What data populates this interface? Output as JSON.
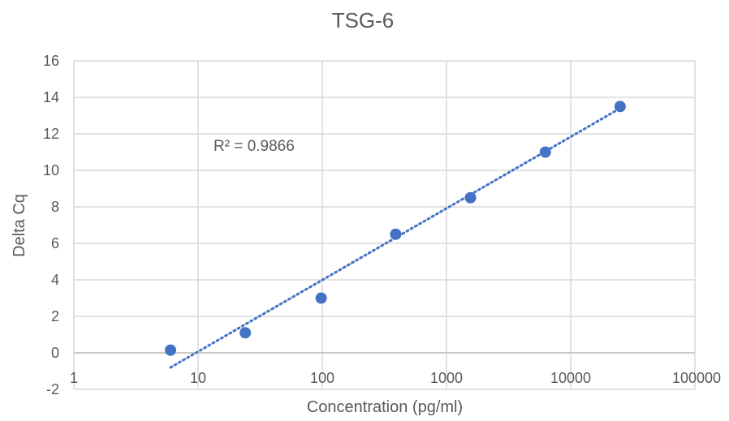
{
  "chart_data": {
    "type": "scatter",
    "title": "TSG-6",
    "xlabel": "Concentration (pg/ml)",
    "ylabel": "Delta Cq",
    "x_scale": "log",
    "xlim": [
      1,
      100000
    ],
    "ylim": [
      -2,
      16
    ],
    "x_ticks": [
      1,
      10,
      100,
      1000,
      10000,
      100000
    ],
    "x_tick_labels": [
      "1",
      "10",
      "100",
      "1000",
      "10000",
      "100000"
    ],
    "y_ticks": [
      -2,
      0,
      2,
      4,
      6,
      8,
      10,
      12,
      14,
      16
    ],
    "y_tick_labels": [
      "-2",
      "0",
      "2",
      "4",
      "6",
      "8",
      "10",
      "12",
      "14",
      "16"
    ],
    "grid": true,
    "legend": "none",
    "series": [
      {
        "color": "#4472C4",
        "x": [
          6,
          24,
          98,
          390,
          1560,
          6250,
          25000
        ],
        "y": [
          0.15,
          1.1,
          3.0,
          6.5,
          8.5,
          11.0,
          13.5
        ]
      }
    ],
    "trendline": {
      "style": "dotted",
      "color": "#4472C4",
      "x_range": [
        6,
        25000
      ],
      "y_range": [
        -0.8,
        13.4
      ]
    },
    "annotation": "R² = 0.9866"
  }
}
